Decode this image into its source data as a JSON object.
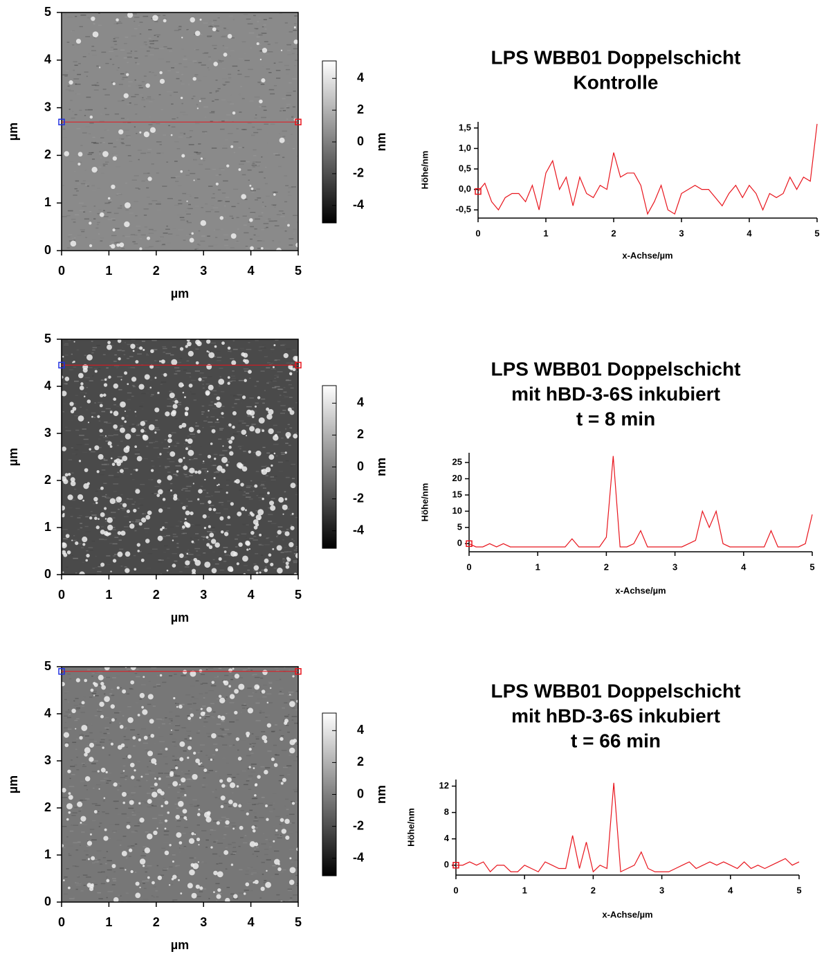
{
  "chart_data": [
    {
      "type": "image",
      "xlim": [
        0,
        5
      ],
      "ylim": [
        0,
        5
      ],
      "xticks": [
        0,
        1,
        2,
        3,
        4,
        5
      ],
      "yticks": [
        0,
        1,
        2,
        3,
        4,
        5
      ],
      "xlabel": "µm",
      "ylabel": "µm",
      "profile_y": 2.7,
      "colorbar": {
        "lim": [
          -5.1,
          5.1
        ],
        "ticks": [
          -4,
          -2,
          0,
          2,
          4
        ],
        "label": "nm"
      }
    },
    {
      "type": "line",
      "title": [
        "LPS WBB01 Doppelschicht",
        "Kontrolle"
      ],
      "xlabel": "x-Achse/µm",
      "ylabel": "Höhe/nm",
      "color": "#e8141c",
      "xlim": [
        0,
        5
      ],
      "ylim": [
        -0.7,
        1.65
      ],
      "xticks": [
        0,
        1,
        2,
        3,
        4,
        5
      ],
      "yticks": [
        {
          "value": -0.5,
          "label": "-0,5"
        },
        {
          "value": 0,
          "label": "0,0"
        },
        {
          "value": 0.5,
          "label": "0,5"
        },
        {
          "value": 1,
          "label": "1,0"
        },
        {
          "value": 1.5,
          "label": "1,5"
        }
      ],
      "x": [
        0,
        0.1,
        0.2,
        0.3,
        0.4,
        0.5,
        0.6,
        0.7,
        0.8,
        0.9,
        1,
        1.1,
        1.2,
        1.3,
        1.4,
        1.5,
        1.6,
        1.7,
        1.8,
        1.9,
        2,
        2.1,
        2.2,
        2.3,
        2.4,
        2.5,
        2.6,
        2.7,
        2.8,
        2.9,
        3,
        3.1,
        3.2,
        3.3,
        3.4,
        3.5,
        3.6,
        3.7,
        3.8,
        3.9,
        4,
        4.1,
        4.2,
        4.3,
        4.4,
        4.5,
        4.6,
        4.7,
        4.8,
        4.9,
        5
      ],
      "values": [
        -0.05,
        0.15,
        -0.3,
        -0.5,
        -0.2,
        -0.1,
        -0.1,
        -0.3,
        0.1,
        -0.5,
        0.4,
        0.7,
        0,
        0.3,
        -0.4,
        0.3,
        -0.1,
        -0.2,
        0.1,
        0,
        0.9,
        0.3,
        0.4,
        0.4,
        0.1,
        -0.6,
        -0.3,
        0.1,
        -0.5,
        -0.6,
        -0.1,
        0,
        0.1,
        0,
        0,
        -0.2,
        -0.4,
        -0.1,
        0.1,
        -0.2,
        0.1,
        -0.1,
        -0.5,
        -0.1,
        -0.2,
        -0.1,
        0.3,
        0,
        0.3,
        0.2,
        1.6
      ]
    },
    {
      "type": "image",
      "xlim": [
        0,
        5
      ],
      "ylim": [
        0,
        5
      ],
      "xticks": [
        0,
        1,
        2,
        3,
        4,
        5
      ],
      "yticks": [
        0,
        1,
        2,
        3,
        4,
        5
      ],
      "xlabel": "µm",
      "ylabel": "µm",
      "profile_y": 4.45,
      "colorbar": {
        "lim": [
          -5.1,
          5.1
        ],
        "ticks": [
          -4,
          -2,
          0,
          2,
          4
        ],
        "label": "nm"
      }
    },
    {
      "type": "line",
      "title": [
        "LPS WBB01 Doppelschicht",
        "mit hBD-3-6S inkubiert",
        "t = 8 min"
      ],
      "xlabel": "x-Achse/µm",
      "ylabel": "Höhe/nm",
      "color": "#e8141c",
      "xlim": [
        0,
        5
      ],
      "ylim": [
        -2.5,
        28
      ],
      "xticks": [
        0,
        1,
        2,
        3,
        4,
        5
      ],
      "yticks": [
        0,
        5,
        10,
        15,
        20,
        25
      ],
      "x": [
        0,
        0.1,
        0.2,
        0.3,
        0.4,
        0.5,
        0.6,
        0.7,
        0.8,
        0.9,
        1,
        1.1,
        1.2,
        1.3,
        1.4,
        1.5,
        1.6,
        1.7,
        1.8,
        1.9,
        2,
        2.1,
        2.2,
        2.3,
        2.4,
        2.5,
        2.6,
        2.7,
        2.8,
        2.9,
        3,
        3.1,
        3.2,
        3.3,
        3.4,
        3.5,
        3.6,
        3.7,
        3.8,
        3.9,
        4,
        4.1,
        4.2,
        4.3,
        4.4,
        4.5,
        4.6,
        4.7,
        4.8,
        4.9,
        5
      ],
      "values": [
        0,
        -1,
        -1,
        0,
        -1,
        0,
        -1,
        -1,
        -1,
        -1,
        -1,
        -1,
        -1,
        -1,
        -1,
        1.5,
        -1,
        -1,
        -1,
        -1,
        2,
        27,
        -1,
        -1,
        0,
        4,
        -1,
        -1,
        -1,
        -1,
        -1,
        -1,
        0,
        1,
        10,
        5,
        10,
        0,
        -1,
        -1,
        -1,
        -1,
        -1,
        -1,
        4,
        -1,
        -1,
        -1,
        -1,
        0,
        9
      ]
    },
    {
      "type": "image",
      "xlim": [
        0,
        5
      ],
      "ylim": [
        0,
        5
      ],
      "xticks": [
        0,
        1,
        2,
        3,
        4,
        5
      ],
      "yticks": [
        0,
        1,
        2,
        3,
        4,
        5
      ],
      "xlabel": "µm",
      "ylabel": "µm",
      "profile_y": 4.9,
      "colorbar": {
        "lim": [
          -5.1,
          5.1
        ],
        "ticks": [
          -4,
          -2,
          0,
          2,
          4
        ],
        "label": "nm"
      }
    },
    {
      "type": "line",
      "title": [
        "LPS WBB01 Doppelschicht",
        "mit hBD-3-6S inkubiert",
        "t = 66 min"
      ],
      "xlabel": "x-Achse/µm",
      "ylabel": "Höhe/nm",
      "color": "#e8141c",
      "xlim": [
        0,
        5
      ],
      "ylim": [
        -1.5,
        13
      ],
      "xticks": [
        0,
        1,
        2,
        3,
        4,
        5
      ],
      "yticks": [
        0,
        4,
        8,
        12
      ],
      "x": [
        0,
        0.1,
        0.2,
        0.3,
        0.4,
        0.5,
        0.6,
        0.7,
        0.8,
        0.9,
        1,
        1.1,
        1.2,
        1.3,
        1.4,
        1.5,
        1.6,
        1.7,
        1.8,
        1.9,
        2,
        2.1,
        2.2,
        2.3,
        2.4,
        2.5,
        2.6,
        2.7,
        2.8,
        2.9,
        3,
        3.1,
        3.2,
        3.3,
        3.4,
        3.5,
        3.6,
        3.7,
        3.8,
        3.9,
        4,
        4.1,
        4.2,
        4.3,
        4.4,
        4.5,
        4.6,
        4.7,
        4.8,
        4.9,
        5
      ],
      "values": [
        0,
        0,
        0.5,
        0,
        0.5,
        -1,
        0,
        0,
        -1,
        -1,
        0,
        -0.5,
        -1,
        0.5,
        0,
        -0.5,
        -0.5,
        4.5,
        -0.5,
        3.5,
        -1,
        0,
        -0.5,
        12.5,
        -1,
        -0.5,
        0,
        2,
        -0.5,
        -1,
        -1,
        -1,
        -0.5,
        0,
        0.5,
        -0.5,
        0,
        0.5,
        0,
        0.5,
        0,
        -0.5,
        0.5,
        -0.5,
        0,
        -0.5,
        0,
        0.5,
        1,
        0,
        0.5
      ]
    }
  ]
}
